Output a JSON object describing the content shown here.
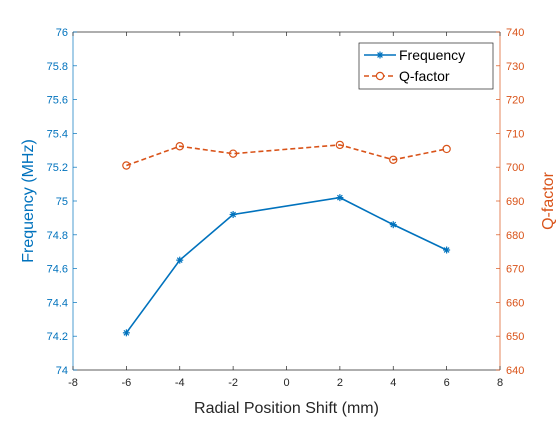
{
  "chart_data": {
    "type": "line",
    "xlabel": "Radial Position Shift (mm)",
    "ylabel_left": "Frequency (MHz)",
    "ylabel_right": "Q-factor",
    "xlim": [
      -8,
      8
    ],
    "xticks": [
      -8,
      -6,
      -4,
      -2,
      0,
      2,
      4,
      6,
      8
    ],
    "ylim_left": [
      74,
      76
    ],
    "yticks_left": [
      "74",
      "74.2",
      "74.4",
      "74.6",
      "74.8",
      "75",
      "75.2",
      "75.4",
      "75.6",
      "75.8",
      "76"
    ],
    "ylim_right": [
      640,
      740
    ],
    "yticks_right": [
      "640",
      "650",
      "660",
      "670",
      "680",
      "690",
      "700",
      "710",
      "720",
      "730",
      "740"
    ],
    "legend_position": "top-right",
    "grid": false,
    "series": [
      {
        "name": "Frequency",
        "axis": "left",
        "color": "#0072BD",
        "marker": "asterisk",
        "line_style": "solid",
        "x": [
          -6,
          -4,
          -2,
          2,
          4,
          6
        ],
        "y": [
          74.22,
          74.65,
          74.92,
          75.02,
          74.86,
          74.71
        ]
      },
      {
        "name": "Q-factor",
        "axis": "right",
        "color": "#D95319",
        "marker": "circle",
        "line_style": "dashed",
        "x": [
          -6,
          -4,
          -2,
          2,
          4,
          6
        ],
        "y": [
          700.5,
          706.2,
          704.0,
          706.6,
          702.2,
          705.4
        ]
      }
    ]
  }
}
